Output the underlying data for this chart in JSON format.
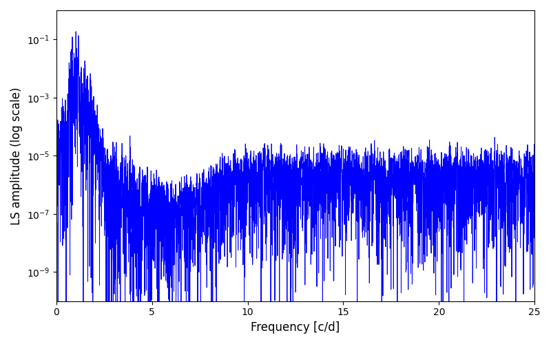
{
  "xlabel": "Frequency [c/d]",
  "ylabel": "LS amplitude (log scale)",
  "line_color": "#0000ff",
  "line_width": 0.7,
  "xlim": [
    0,
    25
  ],
  "ylim": [
    1e-10,
    1.0
  ],
  "freq_min": 0.0,
  "freq_max": 25.0,
  "n_points": 5000,
  "background_color": "#ffffff",
  "figsize": [
    8.0,
    5.0
  ],
  "dpi": 100,
  "yticks": [
    1e-09,
    1e-07,
    1e-05,
    0.001,
    0.1
  ],
  "xticks": [
    0,
    5,
    10,
    15,
    20,
    25
  ]
}
